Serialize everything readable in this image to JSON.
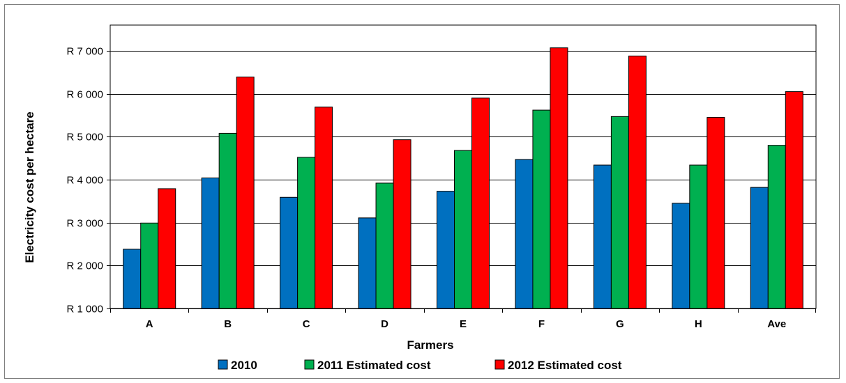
{
  "chart_data": {
    "type": "bar",
    "title": "",
    "xlabel": "Farmers",
    "ylabel": "Electricity cost per hectare",
    "categories": [
      "A",
      "B",
      "C",
      "D",
      "E",
      "F",
      "G",
      "H",
      "Ave"
    ],
    "series": [
      {
        "name": "2010",
        "color": "#0070c0",
        "values": [
          2380,
          4040,
          3590,
          3110,
          3730,
          4470,
          4340,
          3450,
          3820
        ]
      },
      {
        "name": "2011 Estimated cost",
        "color": "#00b050",
        "values": [
          2990,
          5080,
          4520,
          3920,
          4680,
          5620,
          5470,
          4340,
          4800
        ]
      },
      {
        "name": "2012 Estimated cost",
        "color": "#ff0000",
        "values": [
          3790,
          6390,
          5690,
          4930,
          5900,
          7070,
          6880,
          5450,
          6050
        ]
      }
    ],
    "ylim": [
      1000,
      7600
    ],
    "yticks": [
      1000,
      2000,
      3000,
      4000,
      5000,
      6000,
      7000
    ],
    "ytick_labels": [
      "R 1 000",
      "R 2 000",
      "R 3 000",
      "R 4 000",
      "R 5 000",
      "R 6 000",
      "R 7 000"
    ],
    "grid": true,
    "legend_position": "bottom"
  }
}
